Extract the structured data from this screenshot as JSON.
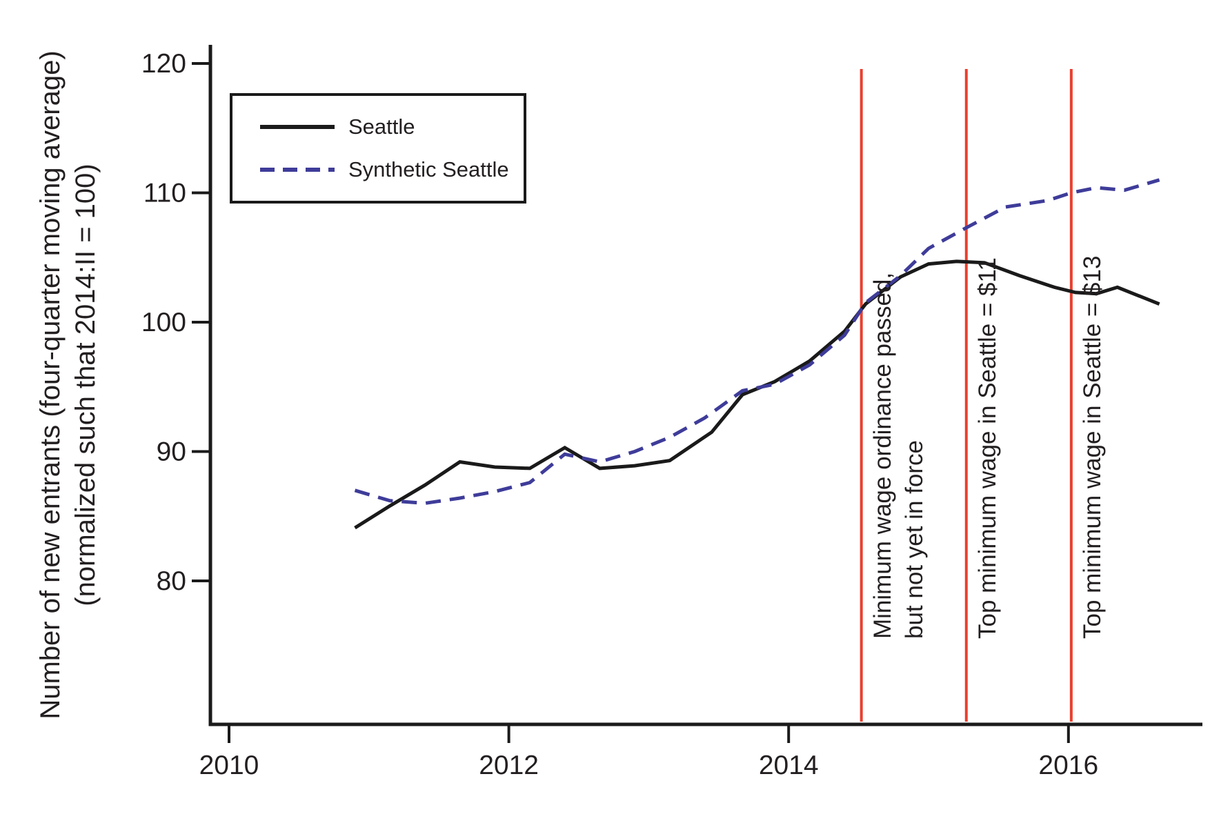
{
  "chart_data": {
    "type": "line",
    "title": "",
    "xlabel": "",
    "ylabel_line1": "Number of new entrants (four-quarter moving average)",
    "ylabel_line2": "(normalized such that 2014:II = 100)",
    "x_ticks": [
      2010,
      2012,
      2014,
      2016
    ],
    "y_ticks": [
      80,
      90,
      100,
      110,
      120
    ],
    "x_range": [
      2009.87,
      2016.97
    ],
    "y_range": [
      69,
      121.7
    ],
    "grid": false,
    "legend_position": "top-left",
    "axis_color": "#1a1a1a",
    "series": [
      {
        "name": "Seattle",
        "color": "#1a1a1a",
        "style": "solid",
        "points": [
          [
            2010.9,
            84.1
          ],
          [
            2011.15,
            85.8
          ],
          [
            2011.4,
            87.4
          ],
          [
            2011.65,
            89.2
          ],
          [
            2011.9,
            88.8
          ],
          [
            2012.15,
            88.7
          ],
          [
            2012.4,
            90.3
          ],
          [
            2012.65,
            88.7
          ],
          [
            2012.9,
            88.9
          ],
          [
            2013.15,
            89.3
          ],
          [
            2013.45,
            91.5
          ],
          [
            2013.67,
            94.4
          ],
          [
            2013.9,
            95.4
          ],
          [
            2014.15,
            97.0
          ],
          [
            2014.4,
            99.3
          ],
          [
            2014.55,
            101.4
          ],
          [
            2014.8,
            103.5
          ],
          [
            2015.0,
            104.5
          ],
          [
            2015.2,
            104.7
          ],
          [
            2015.4,
            104.6
          ],
          [
            2015.65,
            103.6
          ],
          [
            2015.9,
            102.7
          ],
          [
            2016.05,
            102.3
          ],
          [
            2016.2,
            102.2
          ],
          [
            2016.35,
            102.7
          ],
          [
            2016.65,
            101.4
          ]
        ]
      },
      {
        "name": "Synthetic Seattle",
        "color": "#3e3c99",
        "style": "dashed",
        "points": [
          [
            2010.9,
            87.0
          ],
          [
            2011.15,
            86.2
          ],
          [
            2011.4,
            86.0
          ],
          [
            2011.65,
            86.4
          ],
          [
            2011.9,
            86.9
          ],
          [
            2012.15,
            87.6
          ],
          [
            2012.4,
            89.8
          ],
          [
            2012.65,
            89.2
          ],
          [
            2012.9,
            90.0
          ],
          [
            2013.15,
            91.1
          ],
          [
            2013.4,
            92.6
          ],
          [
            2013.67,
            94.7
          ],
          [
            2013.9,
            95.2
          ],
          [
            2014.15,
            96.7
          ],
          [
            2014.4,
            99.0
          ],
          [
            2014.55,
            101.5
          ],
          [
            2014.8,
            103.6
          ],
          [
            2015.0,
            105.7
          ],
          [
            2015.27,
            107.3
          ],
          [
            2015.55,
            108.9
          ],
          [
            2015.85,
            109.4
          ],
          [
            2016.02,
            110.0
          ],
          [
            2016.2,
            110.4
          ],
          [
            2016.4,
            110.2
          ],
          [
            2016.65,
            111.0
          ]
        ]
      }
    ],
    "event_lines": [
      {
        "x": 2014.52,
        "color": "#e8402f",
        "label_lines": [
          "Minimum wage ordinance passed,",
          "but not yet in force"
        ]
      },
      {
        "x": 2015.27,
        "color": "#e8402f",
        "label_lines": [
          "Top minimum wage in Seattle = $11"
        ]
      },
      {
        "x": 2016.02,
        "color": "#e8402f",
        "label_lines": [
          "Top minimum wage in Seattle = $13"
        ]
      }
    ]
  }
}
